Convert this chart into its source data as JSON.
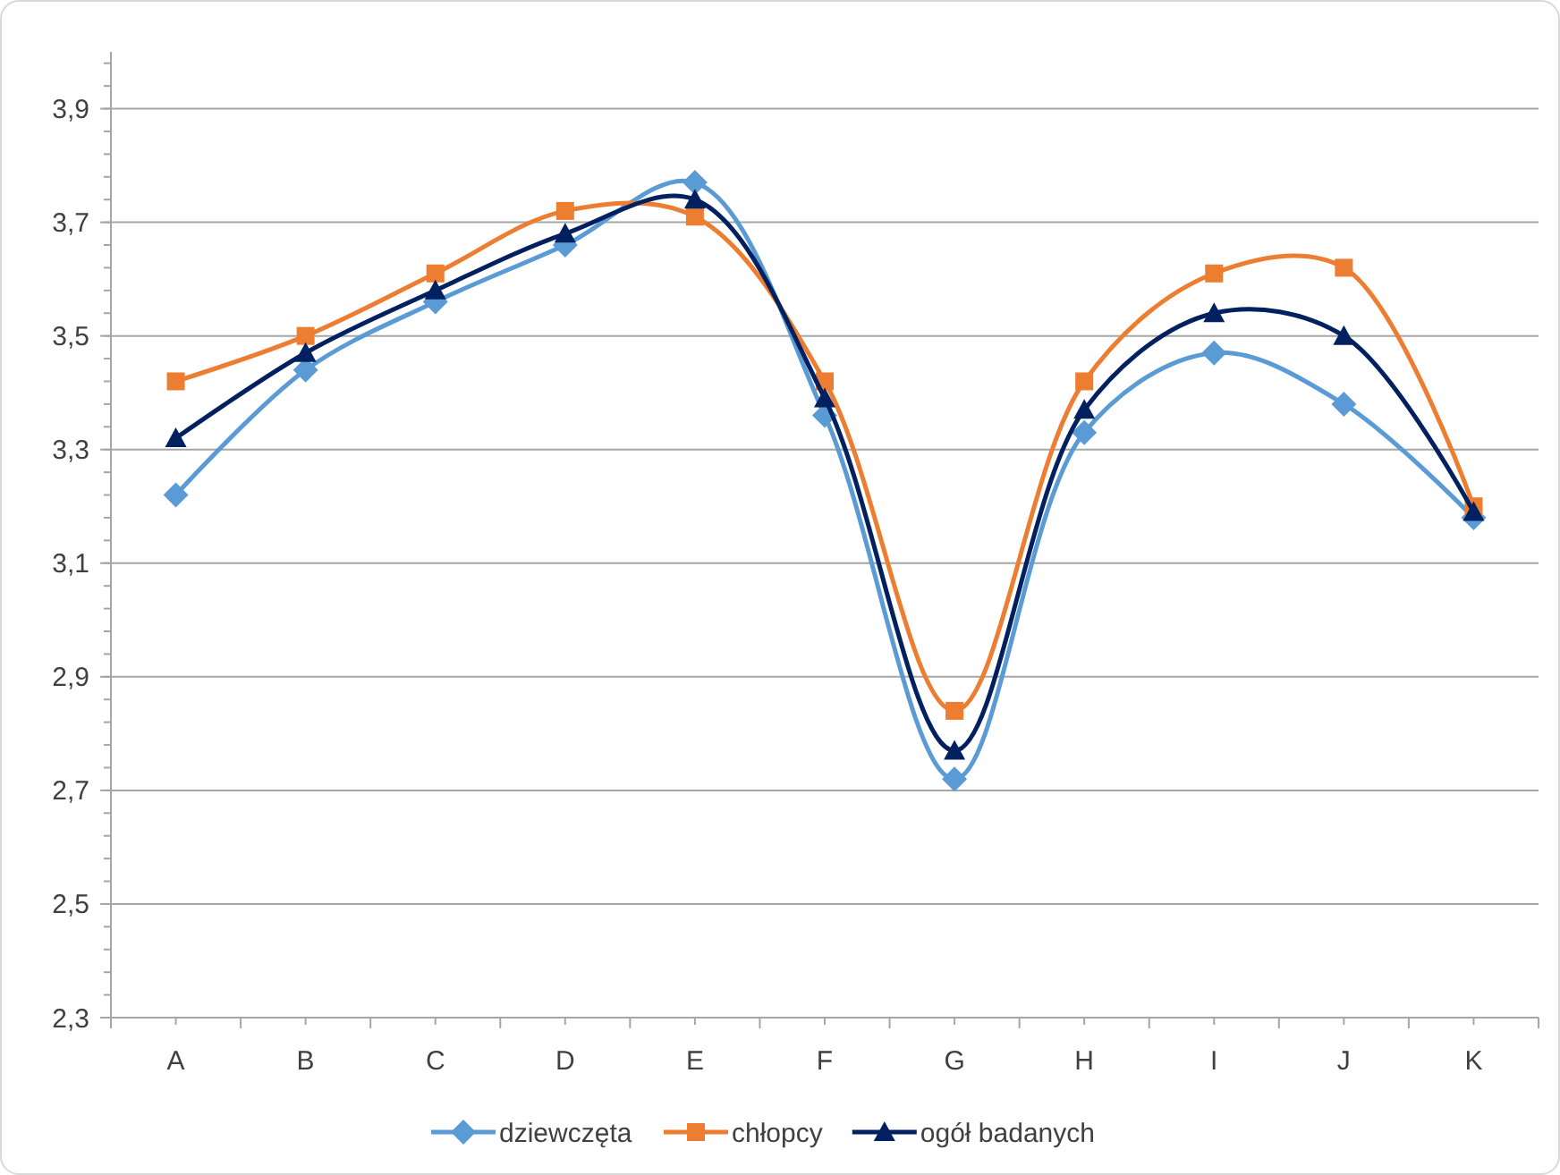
{
  "chart_data": {
    "type": "line",
    "categories": [
      "A",
      "B",
      "C",
      "D",
      "E",
      "F",
      "G",
      "H",
      "I",
      "J",
      "K"
    ],
    "series": [
      {
        "name": "dziewczęta",
        "color": "#5b9bd5",
        "marker": "diamond",
        "values": [
          3.22,
          3.44,
          3.56,
          3.66,
          3.77,
          3.36,
          2.72,
          3.33,
          3.47,
          3.38,
          3.18
        ]
      },
      {
        "name": "chłopcy",
        "color": "#ed7d31",
        "marker": "square",
        "values": [
          3.42,
          3.5,
          3.61,
          3.72,
          3.71,
          3.42,
          2.84,
          3.42,
          3.61,
          3.62,
          3.2
        ]
      },
      {
        "name": "ogół badanych",
        "color": "#002060",
        "marker": "triangle",
        "values": [
          3.32,
          3.47,
          3.58,
          3.68,
          3.74,
          3.39,
          2.77,
          3.37,
          3.54,
          3.5,
          3.19
        ]
      }
    ],
    "ylim": [
      2.3,
      4.0
    ],
    "yticks": [
      {
        "value": 2.3,
        "label": "2,3"
      },
      {
        "value": 2.5,
        "label": "2,5"
      },
      {
        "value": 2.7,
        "label": "2,7"
      },
      {
        "value": 2.9,
        "label": "2,9"
      },
      {
        "value": 3.1,
        "label": "3,1"
      },
      {
        "value": 3.3,
        "label": "3,3"
      },
      {
        "value": 3.5,
        "label": "3,5"
      },
      {
        "value": 3.7,
        "label": "3,7"
      },
      {
        "value": 3.9,
        "label": "3,9"
      }
    ],
    "grid": "y",
    "legend": "bottom",
    "line_style": "solid"
  }
}
